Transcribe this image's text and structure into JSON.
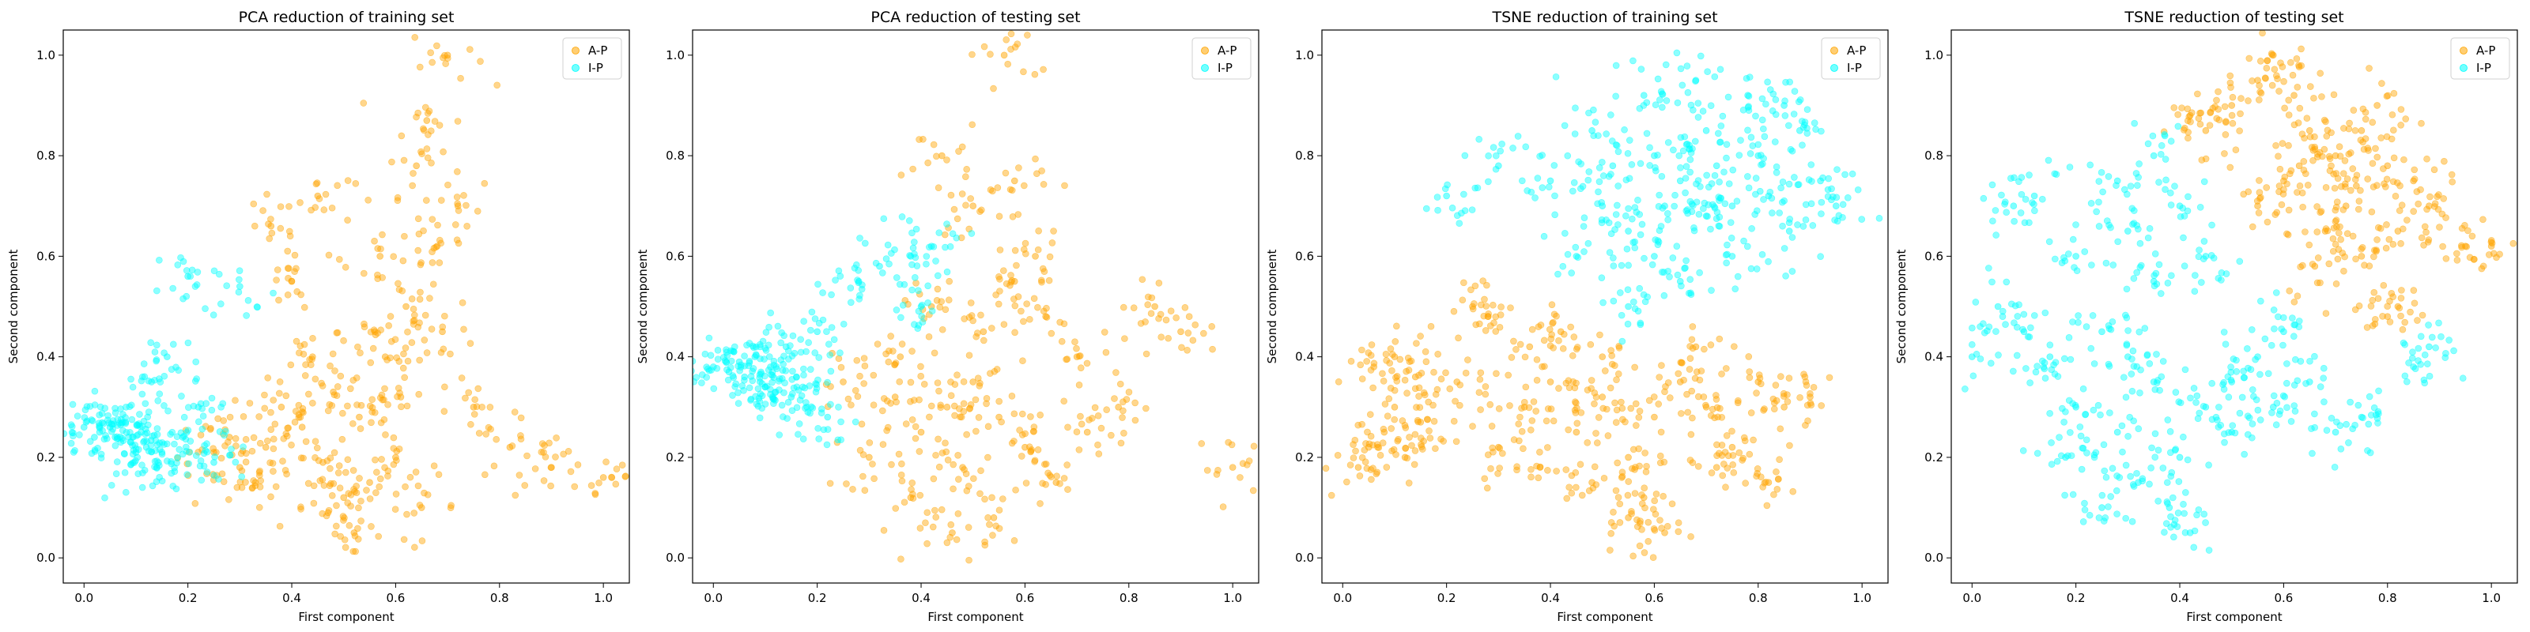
{
  "colors": {
    "A-P": "#ffa500",
    "I-P": "#00ffff"
  },
  "chart_data": [
    {
      "type": "scatter",
      "title": "PCA reduction of training set",
      "xlabel": "First component",
      "ylabel": "Second component",
      "xlim": [
        -0.04,
        1.05
      ],
      "ylim": [
        -0.05,
        1.05
      ],
      "xticks": [
        "0.0",
        "0.2",
        "0.4",
        "0.6",
        "0.8",
        "1.0"
      ],
      "yticks": [
        "0.0",
        "0.2",
        "0.4",
        "0.6",
        "0.8",
        "1.0"
      ],
      "legend": {
        "placement": "top-right",
        "entries": [
          "A-P",
          "I-P"
        ]
      },
      "series": [
        {
          "name": "A-P",
          "color": "#ffa500",
          "points": [
            [
              0.46,
              0.19
            ],
            [
              0.35,
              0.22
            ],
            [
              0.55,
              0.15
            ],
            [
              0.42,
              0.26
            ],
            [
              0.5,
              0.12
            ],
            [
              0.6,
              0.2
            ],
            [
              0.38,
              0.3
            ],
            [
              0.48,
              0.33
            ],
            [
              0.58,
              0.4
            ],
            [
              0.62,
              0.5
            ],
            [
              0.68,
              0.62
            ],
            [
              0.72,
              0.7
            ],
            [
              0.66,
              0.87
            ],
            [
              0.64,
              0.78
            ],
            [
              0.7,
              1.0
            ],
            [
              0.45,
              0.72
            ],
            [
              0.4,
              0.55
            ],
            [
              0.3,
              0.18
            ],
            [
              0.25,
              0.21
            ],
            [
              0.52,
              0.05
            ],
            [
              0.65,
              0.1
            ],
            [
              0.75,
              0.3
            ],
            [
              0.82,
              0.22
            ],
            [
              0.9,
              0.18
            ],
            [
              1.0,
              0.16
            ],
            [
              0.56,
              0.45
            ],
            [
              0.44,
              0.4
            ],
            [
              0.36,
              0.66
            ],
            [
              0.53,
              0.28
            ],
            [
              0.47,
              0.09
            ],
            [
              0.33,
              0.15
            ],
            [
              0.28,
              0.24
            ],
            [
              0.61,
              0.32
            ],
            [
              0.69,
              0.45
            ],
            [
              0.57,
              0.6
            ]
          ]
        },
        {
          "name": "I-P",
          "color": "#00ffff",
          "points": [
            [
              0.0,
              0.26
            ],
            [
              0.03,
              0.25
            ],
            [
              0.06,
              0.24
            ],
            [
              0.09,
              0.23
            ],
            [
              0.12,
              0.22
            ],
            [
              0.15,
              0.21
            ],
            [
              0.18,
              0.2
            ],
            [
              0.05,
              0.26
            ],
            [
              0.08,
              0.27
            ],
            [
              0.11,
              0.25
            ],
            [
              0.2,
              0.56
            ],
            [
              0.16,
              0.4
            ],
            [
              0.13,
              0.35
            ],
            [
              0.22,
              0.3
            ],
            [
              0.25,
              0.19
            ],
            [
              0.14,
              0.18
            ],
            [
              0.3,
              0.54
            ],
            [
              0.02,
              0.24
            ],
            [
              0.1,
              0.21
            ],
            [
              0.19,
              0.24
            ]
          ]
        }
      ]
    },
    {
      "type": "scatter",
      "title": "PCA reduction of testing set",
      "xlabel": "First component",
      "ylabel": "Second component",
      "xlim": [
        -0.04,
        1.05
      ],
      "ylim": [
        -0.05,
        1.05
      ],
      "xticks": [
        "0.0",
        "0.2",
        "0.4",
        "0.6",
        "0.8",
        "1.0"
      ],
      "yticks": [
        "0.0",
        "0.2",
        "0.4",
        "0.6",
        "0.8",
        "1.0"
      ],
      "legend": {
        "placement": "top-right",
        "entries": [
          "A-P",
          "I-P"
        ]
      },
      "series": [
        {
          "name": "A-P",
          "color": "#ffa500",
          "points": [
            [
              0.45,
              0.3
            ],
            [
              0.4,
              0.25
            ],
            [
              0.5,
              0.35
            ],
            [
              0.55,
              0.28
            ],
            [
              0.35,
              0.32
            ],
            [
              0.6,
              0.22
            ],
            [
              0.48,
              0.18
            ],
            [
              0.52,
              0.45
            ],
            [
              0.42,
              0.5
            ],
            [
              0.58,
              0.55
            ],
            [
              0.44,
              0.8
            ],
            [
              0.56,
              1.0
            ],
            [
              0.5,
              0.7
            ],
            [
              0.62,
              0.6
            ],
            [
              0.7,
              0.4
            ],
            [
              0.78,
              0.3
            ],
            [
              0.85,
              0.5
            ],
            [
              0.9,
              0.45
            ],
            [
              1.0,
              0.18
            ],
            [
              0.66,
              0.15
            ],
            [
              0.54,
              0.08
            ],
            [
              0.46,
              0.05
            ],
            [
              0.38,
              0.12
            ],
            [
              0.3,
              0.2
            ],
            [
              0.25,
              0.35
            ],
            [
              0.64,
              0.48
            ],
            [
              0.72,
              0.25
            ],
            [
              0.36,
              0.4
            ],
            [
              0.58,
              0.75
            ]
          ]
        },
        {
          "name": "I-P",
          "color": "#00ffff",
          "points": [
            [
              0.0,
              0.38
            ],
            [
              0.03,
              0.37
            ],
            [
              0.06,
              0.36
            ],
            [
              0.09,
              0.35
            ],
            [
              0.12,
              0.33
            ],
            [
              0.15,
              0.32
            ],
            [
              0.18,
              0.3
            ],
            [
              0.05,
              0.39
            ],
            [
              0.08,
              0.4
            ],
            [
              0.11,
              0.38
            ],
            [
              0.14,
              0.42
            ],
            [
              0.2,
              0.45
            ],
            [
              0.28,
              0.55
            ],
            [
              0.32,
              0.58
            ],
            [
              0.38,
              0.6
            ],
            [
              0.42,
              0.62
            ],
            [
              0.4,
              0.5
            ],
            [
              0.22,
              0.28
            ],
            [
              0.16,
              0.36
            ],
            [
              0.1,
              0.34
            ]
          ]
        }
      ]
    },
    {
      "type": "scatter",
      "title": "TSNE reduction of training set",
      "xlabel": "First component",
      "ylabel": "Second component",
      "xlim": [
        -0.04,
        1.05
      ],
      "ylim": [
        -0.05,
        1.05
      ],
      "xticks": [
        "0.0",
        "0.2",
        "0.4",
        "0.6",
        "0.8",
        "1.0"
      ],
      "yticks": [
        "0.0",
        "0.2",
        "0.4",
        "0.6",
        "0.8",
        "1.0"
      ],
      "legend": {
        "placement": "top-right",
        "entries": [
          "A-P",
          "I-P"
        ]
      },
      "series": [
        {
          "name": "A-P",
          "color": "#ffa500",
          "points": [
            [
              0.05,
              0.22
            ],
            [
              0.08,
              0.25
            ],
            [
              0.12,
              0.2
            ],
            [
              0.15,
              0.27
            ],
            [
              0.03,
              0.18
            ],
            [
              0.1,
              0.3
            ],
            [
              0.06,
              0.38
            ],
            [
              0.1,
              0.4
            ],
            [
              0.14,
              0.36
            ],
            [
              0.25,
              0.5
            ],
            [
              0.28,
              0.48
            ],
            [
              0.35,
              0.3
            ],
            [
              0.4,
              0.35
            ],
            [
              0.45,
              0.25
            ],
            [
              0.5,
              0.32
            ],
            [
              0.55,
              0.2
            ],
            [
              0.6,
              0.28
            ],
            [
              0.65,
              0.35
            ],
            [
              0.7,
              0.3
            ],
            [
              0.75,
              0.22
            ],
            [
              0.8,
              0.35
            ],
            [
              0.85,
              0.3
            ],
            [
              0.9,
              0.32
            ],
            [
              0.42,
              0.45
            ],
            [
              0.5,
              0.4
            ],
            [
              0.58,
              0.12
            ],
            [
              0.62,
              0.05
            ],
            [
              0.55,
              0.08
            ],
            [
              0.48,
              0.15
            ],
            [
              0.38,
              0.18
            ],
            [
              0.3,
              0.22
            ],
            [
              0.22,
              0.35
            ],
            [
              0.72,
              0.18
            ],
            [
              0.82,
              0.15
            ],
            [
              0.68,
              0.42
            ],
            [
              0.36,
              0.42
            ]
          ]
        },
        {
          "name": "I-P",
          "color": "#00ffff",
          "points": [
            [
              0.6,
              0.8
            ],
            [
              0.65,
              0.75
            ],
            [
              0.7,
              0.85
            ],
            [
              0.75,
              0.7
            ],
            [
              0.8,
              0.8
            ],
            [
              0.85,
              0.9
            ],
            [
              0.55,
              0.65
            ],
            [
              0.5,
              0.7
            ],
            [
              0.45,
              0.6
            ],
            [
              0.4,
              0.75
            ],
            [
              0.48,
              0.85
            ],
            [
              0.58,
              0.92
            ],
            [
              0.68,
              0.95
            ],
            [
              0.78,
              0.92
            ],
            [
              0.88,
              0.85
            ],
            [
              0.92,
              0.75
            ],
            [
              0.86,
              0.65
            ],
            [
              0.75,
              0.6
            ],
            [
              0.65,
              0.55
            ],
            [
              0.55,
              0.5
            ],
            [
              0.6,
              0.6
            ],
            [
              0.7,
              0.68
            ],
            [
              0.82,
              0.72
            ],
            [
              0.2,
              0.72
            ],
            [
              0.3,
              0.78
            ],
            [
              0.95,
              0.7
            ],
            [
              0.52,
              0.78
            ],
            [
              0.62,
              0.7
            ],
            [
              0.72,
              0.78
            ]
          ]
        }
      ]
    },
    {
      "type": "scatter",
      "title": "TSNE reduction of testing set",
      "xlabel": "First component",
      "ylabel": "Second component",
      "xlim": [
        -0.04,
        1.05
      ],
      "ylim": [
        -0.05,
        1.05
      ],
      "xticks": [
        "0.0",
        "0.2",
        "0.4",
        "0.6",
        "0.8",
        "1.0"
      ],
      "yticks": [
        "0.0",
        "0.2",
        "0.4",
        "0.6",
        "0.8",
        "1.0"
      ],
      "legend": {
        "placement": "top-right",
        "entries": [
          "A-P",
          "I-P"
        ]
      },
      "series": [
        {
          "name": "A-P",
          "color": "#ffa500",
          "points": [
            [
              0.55,
              0.95
            ],
            [
              0.58,
              1.0
            ],
            [
              0.62,
              0.92
            ],
            [
              0.5,
              0.9
            ],
            [
              0.65,
              0.85
            ],
            [
              0.7,
              0.8
            ],
            [
              0.75,
              0.85
            ],
            [
              0.8,
              0.78
            ],
            [
              0.72,
              0.7
            ],
            [
              0.68,
              0.65
            ],
            [
              0.75,
              0.6
            ],
            [
              0.82,
              0.65
            ],
            [
              0.85,
              0.75
            ],
            [
              0.78,
              0.9
            ],
            [
              0.6,
              0.75
            ],
            [
              0.55,
              0.7
            ],
            [
              0.45,
              0.85
            ],
            [
              0.42,
              0.88
            ],
            [
              0.95,
              0.62
            ],
            [
              1.0,
              0.62
            ],
            [
              0.8,
              0.48
            ],
            [
              0.82,
              0.5
            ],
            [
              0.66,
              0.58
            ],
            [
              0.88,
              0.7
            ],
            [
              0.63,
              0.78
            ],
            [
              0.74,
              0.74
            ]
          ]
        },
        {
          "name": "I-P",
          "color": "#00ffff",
          "points": [
            [
              0.25,
              0.45
            ],
            [
              0.3,
              0.4
            ],
            [
              0.35,
              0.35
            ],
            [
              0.2,
              0.3
            ],
            [
              0.28,
              0.25
            ],
            [
              0.32,
              0.15
            ],
            [
              0.38,
              0.1
            ],
            [
              0.4,
              0.2
            ],
            [
              0.45,
              0.3
            ],
            [
              0.5,
              0.35
            ],
            [
              0.55,
              0.4
            ],
            [
              0.6,
              0.45
            ],
            [
              0.5,
              0.25
            ],
            [
              0.35,
              0.55
            ],
            [
              0.3,
              0.65
            ],
            [
              0.28,
              0.75
            ],
            [
              0.35,
              0.8
            ],
            [
              0.4,
              0.7
            ],
            [
              0.45,
              0.6
            ],
            [
              0.15,
              0.4
            ],
            [
              0.1,
              0.45
            ],
            [
              0.05,
              0.5
            ],
            [
              0.0,
              0.4
            ],
            [
              0.08,
              0.7
            ],
            [
              0.12,
              0.72
            ],
            [
              0.2,
              0.6
            ],
            [
              0.58,
              0.3
            ],
            [
              0.65,
              0.35
            ],
            [
              0.7,
              0.25
            ],
            [
              0.75,
              0.28
            ],
            [
              0.85,
              0.38
            ],
            [
              0.88,
              0.42
            ],
            [
              0.42,
              0.05
            ],
            [
              0.25,
              0.1
            ],
            [
              0.18,
              0.2
            ]
          ]
        }
      ]
    }
  ]
}
